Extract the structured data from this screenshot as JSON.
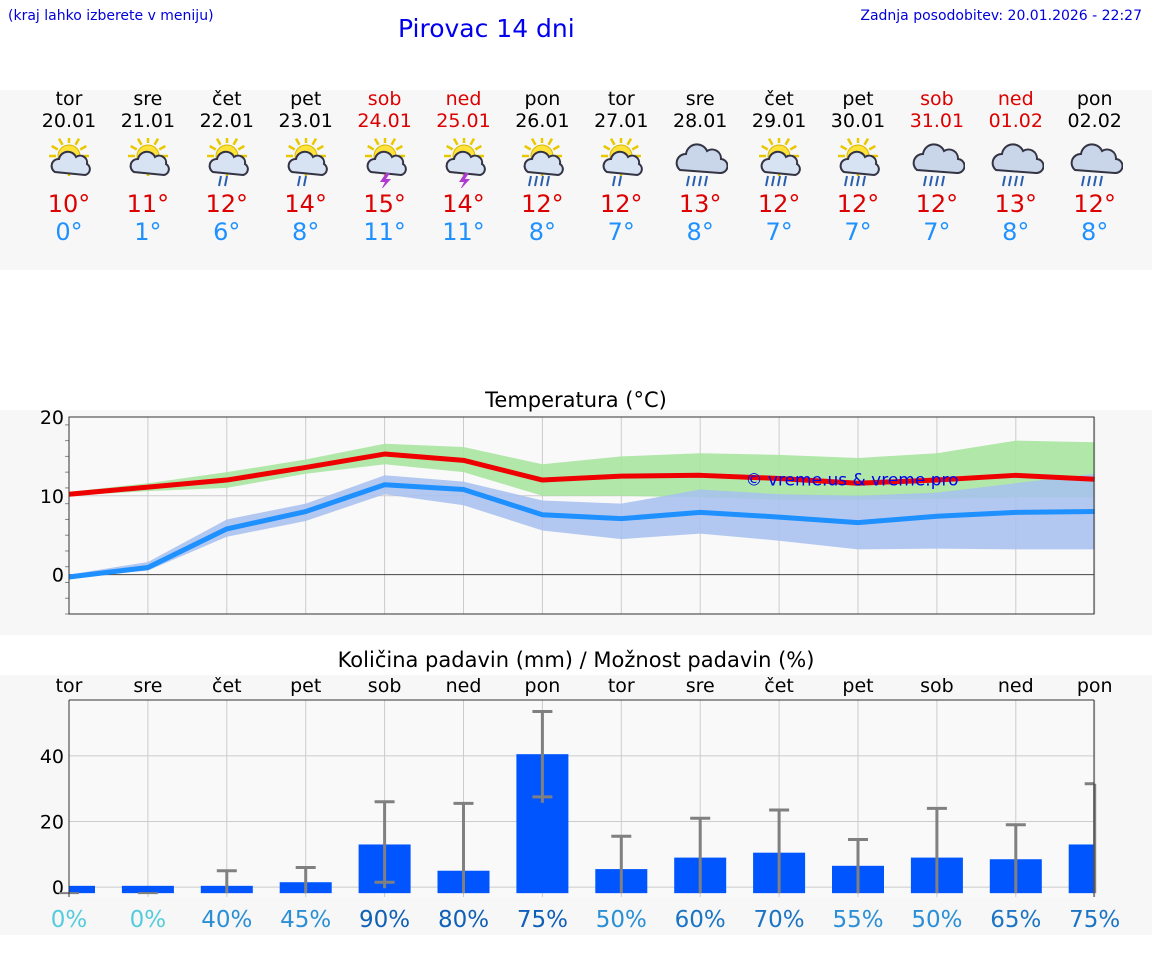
{
  "header": {
    "hint": "(kraj lahko izberete v meniju)",
    "title": "Pirovac 14 dni",
    "updated": "Zadnja posodobitev: 20.01.2026 - 22:27"
  },
  "days": [
    {
      "name": "tor",
      "date": "20.01",
      "icon": "sun-cloud-icon",
      "weekend": false,
      "tmax": "10°",
      "tmin": "0°"
    },
    {
      "name": "sre",
      "date": "21.01",
      "icon": "sun-cloud-icon",
      "weekend": false,
      "tmax": "11°",
      "tmin": "1°"
    },
    {
      "name": "čet",
      "date": "22.01",
      "icon": "sun-cloud-rain-icon",
      "weekend": false,
      "tmax": "12°",
      "tmin": "6°"
    },
    {
      "name": "pet",
      "date": "23.01",
      "icon": "sun-cloud-rain-icon",
      "weekend": false,
      "tmax": "14°",
      "tmin": "8°"
    },
    {
      "name": "sob",
      "date": "24.01",
      "icon": "sun-thunder-icon",
      "weekend": true,
      "tmax": "15°",
      "tmin": "11°"
    },
    {
      "name": "ned",
      "date": "25.01",
      "icon": "sun-thunder-icon",
      "weekend": true,
      "tmax": "14°",
      "tmin": "11°"
    },
    {
      "name": "pon",
      "date": "26.01",
      "icon": "sun-cloud-heavy-rain-icon",
      "weekend": false,
      "tmax": "12°",
      "tmin": "8°"
    },
    {
      "name": "tor",
      "date": "27.01",
      "icon": "sun-cloud-rain-icon",
      "weekend": false,
      "tmax": "12°",
      "tmin": "7°"
    },
    {
      "name": "sre",
      "date": "28.01",
      "icon": "cloud-rain-icon",
      "weekend": false,
      "tmax": "13°",
      "tmin": "8°"
    },
    {
      "name": "čet",
      "date": "29.01",
      "icon": "sun-cloud-heavy-rain-icon",
      "weekend": false,
      "tmax": "12°",
      "tmin": "7°"
    },
    {
      "name": "pet",
      "date": "30.01",
      "icon": "sun-cloud-heavy-rain-icon",
      "weekend": false,
      "tmax": "12°",
      "tmin": "7°"
    },
    {
      "name": "sob",
      "date": "31.01",
      "icon": "cloud-rain-icon",
      "weekend": true,
      "tmax": "12°",
      "tmin": "7°"
    },
    {
      "name": "ned",
      "date": "01.02",
      "icon": "cloud-rain-icon",
      "weekend": true,
      "tmax": "13°",
      "tmin": "8°"
    },
    {
      "name": "pon",
      "date": "02.02",
      "icon": "cloud-rain-icon",
      "weekend": false,
      "tmax": "12°",
      "tmin": "8°"
    }
  ],
  "colors": {
    "max": "#ee0000",
    "min": "#1e90ff",
    "max_band": "#a8e4a0",
    "min_band": "#a7c0f0",
    "bar": "#0055ff",
    "whisker": "#808080"
  },
  "chart_data": [
    {
      "type": "line",
      "title": "Temperatura (°C)",
      "watermark": "© vreme.us & vreme.pro",
      "ylim": [
        -5,
        20
      ],
      "yticks": [
        0,
        10,
        20
      ],
      "x": [
        0,
        1,
        2,
        3,
        4,
        5,
        6,
        7,
        8,
        9,
        10,
        11,
        12,
        13
      ],
      "series": [
        {
          "name": "max",
          "values": [
            10.2,
            11.1,
            12.0,
            13.6,
            15.3,
            14.5,
            12.0,
            12.5,
            12.6,
            12.2,
            11.6,
            12.0,
            12.6,
            12.1
          ]
        },
        {
          "name": "min",
          "values": [
            -0.3,
            0.9,
            5.8,
            8.0,
            11.4,
            10.8,
            7.6,
            7.1,
            7.9,
            7.3,
            6.6,
            7.4,
            7.9,
            8.0
          ]
        }
      ],
      "bands": [
        {
          "name": "max_range",
          "low": [
            10.0,
            10.6,
            11.0,
            12.8,
            14.0,
            13.0,
            10.0,
            10.0,
            9.8,
            9.5,
            9.5,
            9.6,
            9.8,
            9.8
          ],
          "high": [
            10.5,
            11.6,
            13.0,
            14.6,
            16.6,
            16.2,
            14.0,
            15.0,
            15.4,
            15.2,
            14.8,
            15.4,
            17.0,
            16.8
          ]
        },
        {
          "name": "min_range",
          "low": [
            -0.4,
            0.5,
            4.8,
            6.8,
            10.2,
            8.8,
            5.6,
            4.5,
            5.2,
            4.3,
            3.2,
            3.3,
            3.2,
            3.2
          ],
          "high": [
            0.0,
            1.6,
            7.0,
            9.0,
            12.6,
            11.8,
            9.4,
            9.0,
            10.8,
            10.2,
            10.0,
            10.4,
            11.6,
            12.8
          ]
        }
      ]
    },
    {
      "type": "bar",
      "title": "Količina padavin (mm) / Možnost padavin (%)",
      "categories": [
        "tor",
        "sre",
        "čet",
        "pet",
        "sob",
        "ned",
        "pon",
        "tor",
        "sre",
        "čet",
        "pet",
        "sob",
        "ned",
        "pon"
      ],
      "ylim": [
        -3,
        57
      ],
      "yticks": [
        0,
        20,
        40
      ],
      "values": [
        0,
        0,
        0.3,
        1.5,
        13,
        5,
        40.5,
        5.5,
        9,
        10.5,
        6.5,
        9,
        8.5,
        13
      ],
      "errors_low": [
        0,
        0,
        0,
        0,
        1.5,
        0,
        27.5,
        0,
        0,
        0,
        0,
        0,
        0,
        0
      ],
      "errors_high": [
        0,
        0,
        5,
        6,
        26,
        25.5,
        53.5,
        15.5,
        21,
        23.5,
        14.5,
        24,
        19,
        31.5
      ],
      "probabilities": [
        "0%",
        "0%",
        "40%",
        "45%",
        "90%",
        "80%",
        "75%",
        "50%",
        "60%",
        "70%",
        "55%",
        "50%",
        "65%",
        "75%"
      ],
      "probability_colors": [
        "#55ccdd",
        "#55ccdd",
        "#2a8fd6",
        "#2a8fd6",
        "#1060b8",
        "#1060b8",
        "#1060b8",
        "#2a8fd6",
        "#1b74c4",
        "#1b74c4",
        "#2a8fd6",
        "#2a8fd6",
        "#1b74c4",
        "#1b74c4"
      ]
    }
  ]
}
